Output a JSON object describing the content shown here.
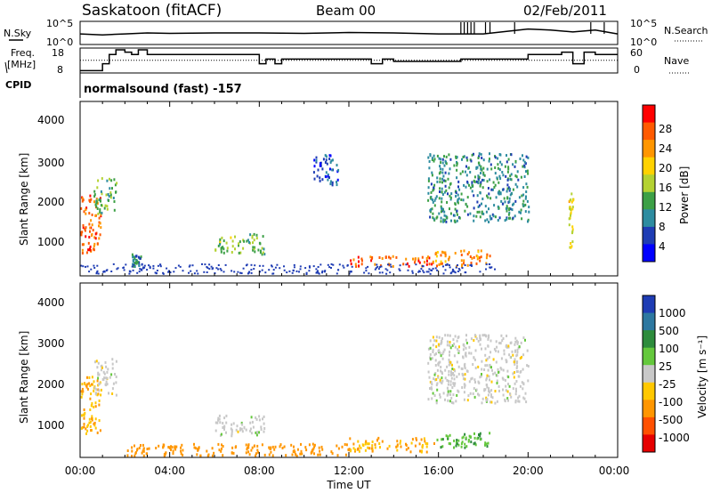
{
  "header": {
    "station": "Saskatoon (fitACF)",
    "beam": "Beam 00",
    "date": "02/Feb/2011"
  },
  "noise_panel": {
    "left_label": "N.Sky",
    "right_label": "N.Search",
    "left_ticks": [
      "10^5",
      "10^0"
    ],
    "right_ticks": [
      "10^5",
      "10^0"
    ]
  },
  "freq_panel": {
    "left_label_1": "Freq.",
    "left_label_2": "[MHz]",
    "right_label": "Nave",
    "left_ticks": [
      "18",
      "8"
    ],
    "right_ticks": [
      "60",
      "0"
    ]
  },
  "cpid": {
    "label": "CPID",
    "program": "normalsound (fast) -157"
  },
  "time_axis": {
    "label": "Time UT",
    "ticks": [
      "00:00",
      "04:00",
      "08:00",
      "12:00",
      "16:00",
      "20:00",
      "00:00"
    ]
  },
  "power_panel": {
    "ylabel": "Slant Range [km]",
    "yticks": [
      "4000",
      "3000",
      "2000",
      "1000"
    ],
    "colorbar_label": "Power [dB]",
    "colorbar_ticks": [
      "28",
      "24",
      "20",
      "16",
      "12",
      "8",
      "4"
    ],
    "colorbar_colors": [
      "#ff0000",
      "#ff5a00",
      "#ff9600",
      "#ffd200",
      "#b4d232",
      "#3ca046",
      "#2d8ca0",
      "#1e3cb4",
      "#0000ff"
    ]
  },
  "velocity_panel": {
    "ylabel": "Slant Range [km]",
    "yticks": [
      "4000",
      "3000",
      "2000",
      "1000"
    ],
    "colorbar_label": "Velocity [m s⁻¹]",
    "colorbar_ticks": [
      "1000",
      "500",
      "100",
      "25",
      "-25",
      "-100",
      "-500",
      "-1000"
    ],
    "colorbar_colors": [
      "#1e3cb4",
      "#2d78a0",
      "#2d8c3c",
      "#64c83c",
      "#c8c8c8",
      "#ffc800",
      "#ff9600",
      "#ff5000",
      "#e60000"
    ]
  },
  "chart_data": [
    {
      "type": "line",
      "panel": "noise",
      "series": [
        {
          "name": "N.Sky",
          "x": [
            0,
            1,
            2,
            3,
            4,
            6,
            8,
            10,
            12,
            14,
            16,
            18,
            20,
            21,
            22,
            23,
            24
          ],
          "y": [
            0.55,
            0.6,
            0.55,
            0.5,
            0.52,
            0.5,
            0.5,
            0.52,
            0.48,
            0.5,
            0.55,
            0.55,
            0.3,
            0.35,
            0.45,
            0.35,
            0.55
          ]
        }
      ]
    },
    {
      "type": "line",
      "panel": "freq",
      "series": [
        {
          "name": "Freq.",
          "x": [
            0,
            0.8,
            1.0,
            1.3,
            1.6,
            2.0,
            2.3,
            2.6,
            3.0,
            4.0,
            8.0,
            8.3,
            8.7,
            9.0,
            10.0,
            13.0,
            13.5,
            14.0,
            17.0,
            20.0,
            21.5,
            22.0,
            22.5,
            23.0,
            24
          ],
          "y": [
            9,
            9,
            12,
            16,
            18,
            17,
            16,
            18,
            16,
            16,
            12,
            14,
            12,
            14,
            14,
            12,
            14,
            13,
            14,
            16,
            17,
            12,
            17,
            16,
            16
          ]
        },
        {
          "name": "Nave",
          "x": [
            0,
            24
          ],
          "y": [
            33,
            33
          ]
        }
      ]
    },
    {
      "type": "heatmap",
      "panel": "power",
      "x_range_hours": [
        0,
        24
      ],
      "y_range_km": [
        180,
        4500
      ],
      "patches": [
        {
          "t0": 0.0,
          "t1": 0.9,
          "r0": 700,
          "r1": 2200,
          "level": 26
        },
        {
          "t0": 0.6,
          "t1": 1.6,
          "r0": 1700,
          "r1": 2600,
          "level": 14
        },
        {
          "t0": 2.3,
          "t1": 2.7,
          "r0": 400,
          "r1": 700,
          "level": 10
        },
        {
          "t0": 6.0,
          "t1": 8.2,
          "r0": 700,
          "r1": 1200,
          "level": 14
        },
        {
          "t0": 10.4,
          "t1": 11.5,
          "r0": 2400,
          "r1": 3200,
          "level": 6
        },
        {
          "t0": 12.0,
          "t1": 15.8,
          "r0": 400,
          "r1": 650,
          "level": 26
        },
        {
          "t0": 15.8,
          "t1": 18.3,
          "r0": 400,
          "r1": 800,
          "level": 24
        },
        {
          "t0": 15.5,
          "t1": 20.0,
          "r0": 1500,
          "r1": 3200,
          "level": 10
        },
        {
          "t0": 21.8,
          "t1": 22.0,
          "r0": 800,
          "r1": 2200,
          "level": 18
        }
      ]
    },
    {
      "type": "heatmap",
      "panel": "velocity",
      "x_range_hours": [
        0,
        24
      ],
      "y_range_km": [
        180,
        4500
      ],
      "patches": [
        {
          "t0": 0.0,
          "t1": 0.9,
          "r0": 700,
          "r1": 2200,
          "level": -100
        },
        {
          "t0": 0.6,
          "t1": 1.6,
          "r0": 1700,
          "r1": 2600,
          "level": 0
        },
        {
          "t0": 2.0,
          "t1": 12.0,
          "r0": 200,
          "r1": 500,
          "level": -200
        },
        {
          "t0": 6.0,
          "t1": 8.2,
          "r0": 700,
          "r1": 1200,
          "level": 0
        },
        {
          "t0": 12.0,
          "t1": 15.8,
          "r0": 300,
          "r1": 650,
          "level": -100
        },
        {
          "t0": 15.5,
          "t1": 20.0,
          "r0": 1500,
          "r1": 3200,
          "level": 0
        },
        {
          "t0": 15.8,
          "t1": 18.3,
          "r0": 400,
          "r1": 800,
          "level": 100
        }
      ]
    }
  ]
}
